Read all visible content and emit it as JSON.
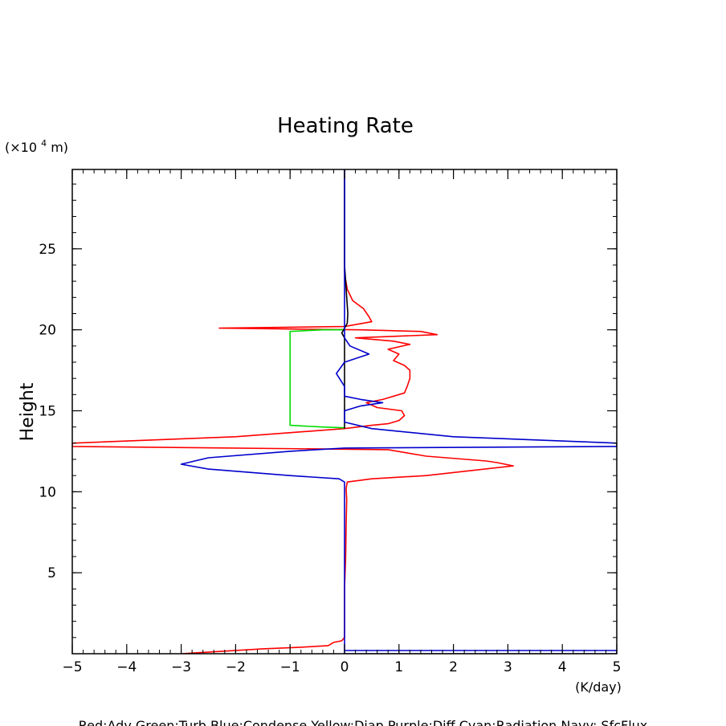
{
  "chart_data": {
    "type": "line",
    "title": "Heating Rate",
    "ylabel": "Height",
    "y_unit_prefix": "(×10",
    "y_unit_exp": "4",
    "y_unit_suffix": " m)",
    "xlabel": "(K/day)",
    "legend": "Red:Adv  Green:Turb  Blue:Condense  Yellow:Diap  Purple:Diff  Cyan:Radiation  Navy: SfcFlux",
    "xlim": [
      -5,
      5
    ],
    "ylim": [
      0,
      29.9
    ],
    "x_ticks": [
      -5,
      -4,
      -3,
      -2,
      -1,
      0,
      1,
      2,
      3,
      4,
      5
    ],
    "x_tick_labels": [
      "−5",
      "−4",
      "−3",
      "−2",
      "−1",
      "0",
      "1",
      "2",
      "3",
      "4",
      "5"
    ],
    "y_ticks": [
      5,
      10,
      15,
      20,
      25
    ],
    "y_tick_labels": [
      "5",
      "10",
      "15",
      "20",
      "25"
    ],
    "series": [
      {
        "name": "Red:Adv",
        "color": "#ff0000",
        "points": [
          [
            -3.0,
            0.0
          ],
          [
            -1.5,
            0.3
          ],
          [
            -0.8,
            0.4
          ],
          [
            -0.3,
            0.5
          ],
          [
            -0.2,
            0.7
          ],
          [
            -0.05,
            0.8
          ],
          [
            0.0,
            1.0
          ],
          [
            0.0,
            4.0
          ],
          [
            0.02,
            6.0
          ],
          [
            0.03,
            8.0
          ],
          [
            0.04,
            9.5
          ],
          [
            0.03,
            10.2
          ],
          [
            0.05,
            10.6
          ],
          [
            0.5,
            10.8
          ],
          [
            1.5,
            11.0
          ],
          [
            3.1,
            11.6
          ],
          [
            2.8,
            11.8
          ],
          [
            2.6,
            11.9
          ],
          [
            1.5,
            12.2
          ],
          [
            0.8,
            12.6
          ],
          [
            -5.0,
            12.8
          ],
          [
            -5.0,
            13.0
          ],
          [
            -2.0,
            13.4
          ],
          [
            0.0,
            13.9
          ],
          [
            0.5,
            14.1
          ],
          [
            0.8,
            14.2
          ],
          [
            1.0,
            14.4
          ],
          [
            1.1,
            14.7
          ],
          [
            1.05,
            15.0
          ],
          [
            0.6,
            15.2
          ],
          [
            0.4,
            15.5
          ],
          [
            0.7,
            15.7
          ],
          [
            1.1,
            16.1
          ],
          [
            1.15,
            16.5
          ],
          [
            1.2,
            17.0
          ],
          [
            1.2,
            17.5
          ],
          [
            1.1,
            17.8
          ],
          [
            0.9,
            18.1
          ],
          [
            1.0,
            18.5
          ],
          [
            0.8,
            18.8
          ],
          [
            1.2,
            19.1
          ],
          [
            0.9,
            19.3
          ],
          [
            0.2,
            19.5
          ],
          [
            1.7,
            19.7
          ],
          [
            1.4,
            19.9
          ],
          [
            0.3,
            20.0
          ],
          [
            -2.3,
            20.1
          ],
          [
            0.0,
            20.2
          ],
          [
            0.5,
            20.5
          ],
          [
            0.45,
            20.8
          ],
          [
            0.35,
            21.3
          ],
          [
            0.15,
            21.8
          ],
          [
            0.05,
            22.5
          ],
          [
            0.0,
            23.5
          ],
          [
            0.0,
            25.0
          ],
          [
            0.0,
            29.9
          ]
        ]
      },
      {
        "name": "Green:Turb",
        "color": "#00dd00",
        "points": [
          [
            0.0,
            13.95
          ],
          [
            -0.4,
            14.0
          ],
          [
            -1.0,
            14.1
          ],
          [
            -1.0,
            19.9
          ],
          [
            -0.4,
            20.0
          ],
          [
            -0.05,
            20.0
          ],
          [
            0.0,
            20.05
          ]
        ]
      },
      {
        "name": "Black",
        "color": "#000000",
        "points": [
          [
            0.0,
            13.9
          ],
          [
            0.0,
            19.5
          ],
          [
            -0.05,
            19.8
          ],
          [
            0.0,
            20.1
          ],
          [
            0.05,
            20.4
          ],
          [
            0.06,
            21.0
          ],
          [
            0.04,
            22.0
          ],
          [
            0.02,
            23.0
          ],
          [
            0.0,
            24.0
          ],
          [
            0.0,
            29.9
          ]
        ]
      },
      {
        "name": "Blue:Condense",
        "color": "#0000cc",
        "points": [
          [
            0.0,
            0.0
          ],
          [
            0.0,
            0.2
          ],
          [
            2.0,
            0.2
          ],
          [
            5.0,
            0.2
          ],
          [
            5.0,
            0.0
          ],
          [
            0.0,
            0.0
          ],
          [
            0.0,
            10.6
          ],
          [
            -0.1,
            10.8
          ],
          [
            -1.0,
            11.0
          ],
          [
            -2.5,
            11.4
          ],
          [
            -3.0,
            11.7
          ],
          [
            -2.5,
            12.1
          ],
          [
            -1.0,
            12.5
          ],
          [
            0.0,
            12.7
          ],
          [
            5.0,
            12.8
          ],
          [
            5.0,
            13.0
          ],
          [
            2.0,
            13.4
          ],
          [
            0.5,
            13.9
          ],
          [
            0.0,
            14.3
          ],
          [
            0.0,
            15.0
          ],
          [
            0.3,
            15.3
          ],
          [
            0.7,
            15.5
          ],
          [
            0.3,
            15.7
          ],
          [
            0.0,
            15.9
          ],
          [
            0.0,
            16.5
          ],
          [
            -0.15,
            17.3
          ],
          [
            0.0,
            18.0
          ],
          [
            0.45,
            18.5
          ],
          [
            0.1,
            19.0
          ],
          [
            0.0,
            19.5
          ],
          [
            0.0,
            29.9
          ]
        ]
      }
    ]
  }
}
